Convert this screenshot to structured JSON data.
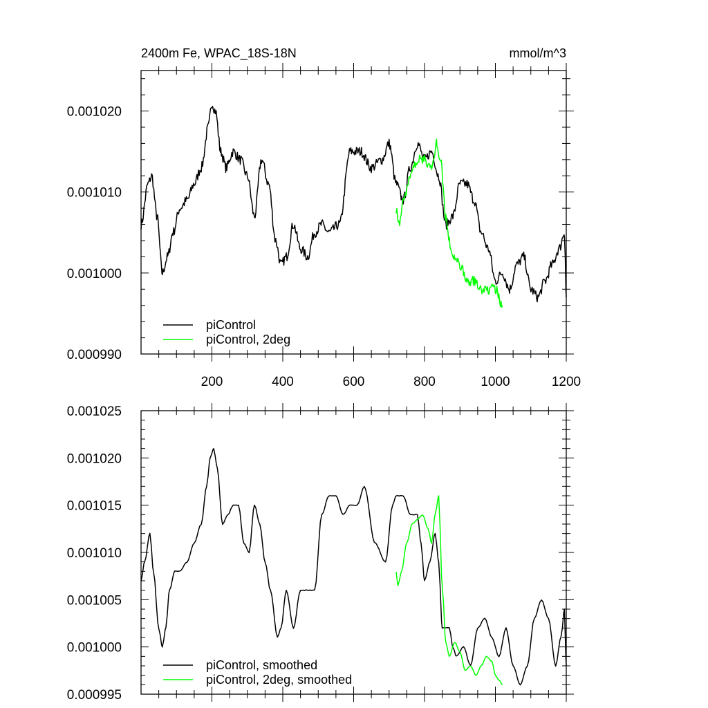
{
  "chart_data": [
    {
      "type": "line",
      "title": "2400m Fe, WPAC_18S-18N",
      "units": "mmol/m^3",
      "xlim": [
        0,
        1200
      ],
      "ylim": [
        0.00099,
        0.001025
      ],
      "xticks": [
        200,
        400,
        600,
        800,
        1000,
        1200
      ],
      "xtick_labels": [
        "200",
        "400",
        "600",
        "800",
        "1000",
        "1200"
      ],
      "yticks": [
        0.00099,
        0.001,
        0.00101,
        0.00102
      ],
      "ytick_labels": [
        "0.000990",
        "0.001000",
        "0.001010",
        "0.001020"
      ],
      "grid": false,
      "legend_position": "bottom-left",
      "series": [
        {
          "name": "piControl",
          "color": "#000000",
          "x": [
            0,
            20,
            30,
            45,
            60,
            75,
            90,
            110,
            130,
            150,
            170,
            190,
            200,
            210,
            225,
            240,
            260,
            280,
            300,
            320,
            340,
            360,
            380,
            395,
            410,
            430,
            450,
            470,
            490,
            510,
            530,
            560,
            590,
            620,
            650,
            680,
            700,
            720,
            740,
            760,
            780,
            800,
            820,
            840,
            860,
            880,
            900,
            920,
            940,
            960,
            980,
            1000,
            1020,
            1040,
            1060,
            1080,
            1100,
            1120,
            1140,
            1160,
            1180,
            1195,
            1200
          ],
          "y": [
            0.001006,
            0.001011,
            0.001012,
            0.001007,
            0.001,
            0.001002,
            0.001005,
            0.001008,
            0.001009,
            0.001011,
            0.001013,
            0.001018,
            0.001021,
            0.00102,
            0.001015,
            0.001013,
            0.001015,
            0.001014,
            0.001012,
            0.001007,
            0.001014,
            0.001011,
            0.001004,
            0.001001,
            0.001002,
            0.001006,
            0.001003,
            0.001002,
            0.001005,
            0.001006,
            0.001005,
            0.001006,
            0.001015,
            0.001015,
            0.001013,
            0.001014,
            0.001016,
            0.001011,
            0.001009,
            0.001013,
            0.001016,
            0.001014,
            0.001015,
            0.001012,
            0.001006,
            0.001007,
            0.001011,
            0.001011,
            0.001009,
            0.001005,
            0.001003,
            0.000999,
            0.001,
            0.000998,
            0.001001,
            0.001002,
            0.000998,
            0.000997,
            0.000999,
            0.001001,
            0.001003,
            0.001005,
            0.000997
          ]
        },
        {
          "name": "piControl, 2deg",
          "color": "#00ff00",
          "x": [
            720,
            730,
            740,
            760,
            780,
            800,
            820,
            835,
            845,
            860,
            870,
            880,
            900,
            920,
            940,
            960,
            980,
            1000,
            1020
          ],
          "y": [
            0.001008,
            0.001006,
            0.001009,
            0.001012,
            0.001014,
            0.001014,
            0.001013,
            0.001016,
            0.001014,
            0.001007,
            0.001004,
            0.001002,
            0.001001,
            0.000999,
            0.000999,
            0.000998,
            0.000998,
            0.000998,
            0.000996
          ]
        }
      ]
    },
    {
      "type": "line",
      "title": "",
      "xlim": [
        0,
        1200
      ],
      "ylim": [
        0.000995,
        0.001025
      ],
      "xticks": [
        200,
        400,
        600,
        800,
        1000,
        1200
      ],
      "xtick_labels": [],
      "yticks": [
        0.000995,
        0.001,
        0.001005,
        0.00101,
        0.001015,
        0.00102,
        0.001025
      ],
      "ytick_labels": [
        "0.000995",
        "0.001000",
        "0.001005",
        "0.001010",
        "0.001015",
        "0.001020",
        "0.001025"
      ],
      "grid": false,
      "legend_position": "bottom-left",
      "series": [
        {
          "name": "piControl, smoothed",
          "color": "#000000",
          "x": [
            0,
            10,
            25,
            35,
            50,
            60,
            70,
            80,
            95,
            110,
            130,
            150,
            170,
            185,
            195,
            205,
            215,
            230,
            245,
            260,
            275,
            290,
            305,
            320,
            335,
            350,
            365,
            385,
            395,
            410,
            430,
            450,
            465,
            490,
            510,
            530,
            550,
            570,
            590,
            610,
            630,
            660,
            690,
            710,
            720,
            740,
            760,
            780,
            790,
            800,
            815,
            830,
            840,
            850,
            870,
            880,
            890,
            910,
            930,
            950,
            970,
            990,
            1010,
            1030,
            1050,
            1070,
            1090,
            1110,
            1130,
            1150,
            1170,
            1185,
            1195,
            1200
          ],
          "y": [
            0.001007,
            0.001009,
            0.001012,
            0.001008,
            0.001002,
            0.001,
            0.001002,
            0.001006,
            0.001008,
            0.001008,
            0.001009,
            0.001011,
            0.001013,
            0.001017,
            0.00102,
            0.001021,
            0.001019,
            0.001013,
            0.001014,
            0.001015,
            0.001015,
            0.001011,
            0.00101,
            0.001015,
            0.001013,
            0.001009,
            0.001006,
            0.001001,
            0.001002,
            0.001006,
            0.001002,
            0.001006,
            0.001006,
            0.001006,
            0.001014,
            0.001016,
            0.001016,
            0.001014,
            0.001015,
            0.001015,
            0.001017,
            0.001011,
            0.001009,
            0.001015,
            0.001016,
            0.001016,
            0.001014,
            0.001014,
            0.001011,
            0.001007,
            0.001009,
            0.001012,
            0.001009,
            0.001002,
            0.001002,
            0.001,
            0.000999,
            0.001,
            0.000998,
            0.001002,
            0.001003,
            0.001001,
            0.000999,
            0.001002,
            0.000998,
            0.000996,
            0.000998,
            0.001003,
            0.001005,
            0.001003,
            0.000998,
            0.001001,
            0.001004,
            0.000998
          ]
        },
        {
          "name": "piControl, 2deg, smoothed",
          "color": "#00ff00",
          "x": [
            720,
            725,
            735,
            750,
            765,
            780,
            795,
            810,
            820,
            830,
            840,
            850,
            860,
            870,
            885,
            900,
            915,
            930,
            945,
            960,
            975,
            990,
            1000,
            1010,
            1020
          ],
          "y": [
            0.001008,
            0.0010065,
            0.001008,
            0.001011,
            0.001013,
            0.0010135,
            0.001014,
            0.0010125,
            0.001011,
            0.001014,
            0.001016,
            0.0010065,
            0.0010005,
            0.000999,
            0.0010005,
            0.0009995,
            0.0009975,
            0.000998,
            0.000997,
            0.000998,
            0.000999,
            0.0009985,
            0.000997,
            0.0009965,
            0.000996
          ]
        }
      ]
    }
  ]
}
